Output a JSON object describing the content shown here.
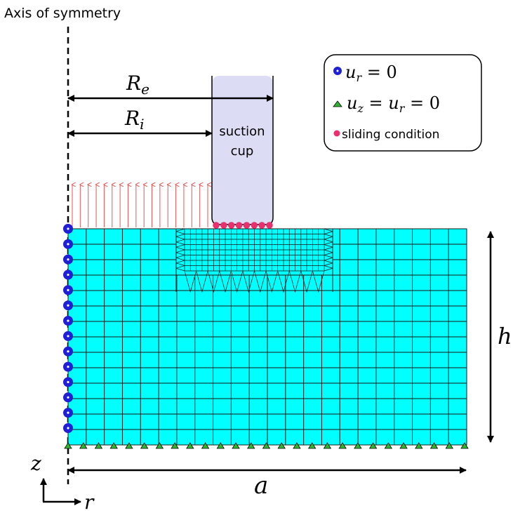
{
  "axis_label": "Axis of symmetry",
  "cup_label_line1": "suction",
  "cup_label_line2": "cup",
  "dim_Re": {
    "main": "R",
    "sub": "e"
  },
  "dim_Ri": {
    "main": "R",
    "sub": "i"
  },
  "dim_h": "h",
  "dim_a": "a",
  "coord_z": "z",
  "coord_r": "r",
  "legend": {
    "ur": {
      "main": "u",
      "sub": "r",
      "rest": " = 0"
    },
    "uz": {
      "main1": "u",
      "sub1": "z",
      "mid": " = ",
      "main2": "u",
      "sub2": "r",
      "rest": " = 0"
    },
    "sliding": "sliding condition"
  },
  "colors": {
    "mesh_fill": "#00ffff",
    "mesh_line": "#1a1a1a",
    "cup_fill": "#dcdcf5",
    "roller_blue": "#1f1fd6",
    "fixed_green": "#2fb52f",
    "slide_red": "#e8306e",
    "pressure_arrow": "#e85555"
  },
  "mesh": {
    "coarse_cols": 22,
    "coarse_rows": 14,
    "refined_cols": 24,
    "refined_rows": 8
  },
  "counts": {
    "roller_nodes": 14,
    "fixed_nodes": 27,
    "slide_nodes": 8,
    "pressure_arrows": 18
  }
}
